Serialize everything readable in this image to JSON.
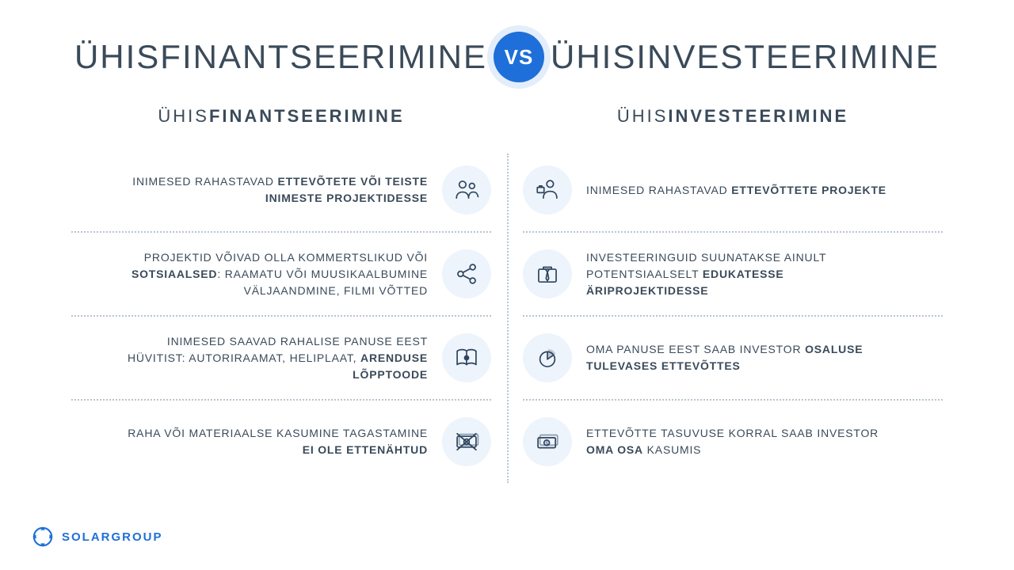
{
  "colors": {
    "text": "#3a4a5a",
    "accent": "#1e6fd9",
    "icon_bg": "#eef4fb",
    "divider": "#b8c5d0",
    "icon_stroke": "#2d4560",
    "background": "#ffffff"
  },
  "title": {
    "left": "ÜHISFINANTSEERIMINE",
    "vs": "VS",
    "right": "ÜHISINVESTEERIMINE"
  },
  "left_column": {
    "heading_light": "ÜHIS",
    "heading_bold": "FINANTSEERIMINE",
    "rows": [
      {
        "icon": "people",
        "html": "INIMESED RAHASTAVAD <b>ETTEVÕTETE VÕI TEISTE INIMESTE PROJEKTIDESSE</b>"
      },
      {
        "icon": "share",
        "html": "PROJEKTID VÕIVAD OLLA KOMMERTSLIKUD VÕI <b>SOTSIAALSED</b>: RAAMATU VÕI MUUSIKAALBUMINE VÄLJAANDMINE, FILMI VÕTTED"
      },
      {
        "icon": "book",
        "html": "INIMESED SAAVAD RAHALISE PANUSE EEST HÜVITIST: AUTORIRAAMAT, HELIPLAAT, <b>ARENDUSE LÕPPTOODE</b>"
      },
      {
        "icon": "money-crossed",
        "html": "RAHA VÕI MATERIAALSE KASUMINE TAGASTAMINE <b>EI OLE ETTENÄHTUD</b>"
      }
    ]
  },
  "right_column": {
    "heading_light": "ÜHIS",
    "heading_bold": "INVESTEERIMINE",
    "rows": [
      {
        "icon": "business-person",
        "html": "INIMESED RAHASTAVAD <b>ETTEVÕTTETE PROJEKTE</b>"
      },
      {
        "icon": "briefcase-tie",
        "html": "INVESTEERINGUID SUUNATAKSE AINULT POTENTSIAALSELT <b>EDUKATESSE ÄRIPROJEKTIDESSE</b>"
      },
      {
        "icon": "pie",
        "html": "OMA PANUSE EEST SAAB INVESTOR <b>OSALUSE TULEVASES ETTEVÕTTES</b>"
      },
      {
        "icon": "money",
        "html": "ETTEVÕTTE TASUVUSE KORRAL SAAB INVESTOR <b>OMA OSA</b> KASUMIS"
      }
    ]
  },
  "logo": {
    "text": "SOLARGROUP"
  }
}
